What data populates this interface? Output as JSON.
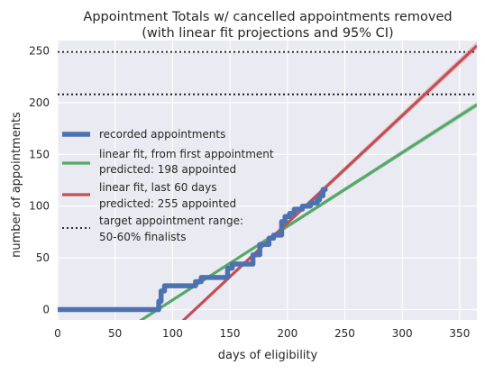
{
  "chart_data": {
    "type": "line",
    "title": [
      "Appointment Totals w/ cancelled appointments removed",
      "(with linear fit projections and 95% CI)"
    ],
    "xlabel": "days of eligibility",
    "ylabel": "number of appointments",
    "xlim": [
      0,
      365
    ],
    "ylim": [
      -10,
      260
    ],
    "xticks": [
      0,
      50,
      100,
      150,
      200,
      250,
      300,
      350
    ],
    "yticks": [
      0,
      50,
      100,
      150,
      200,
      250
    ],
    "grid": true,
    "legend_position": "left",
    "colors": {
      "background": "#eaeaf2",
      "grid": "#ffffff",
      "recorded": "#4c72b0",
      "fit_first": "#55a868",
      "fit_last60": "#c44e52",
      "target": "#111111"
    },
    "series": [
      {
        "name": "recorded appointments",
        "style": "step",
        "x": [
          0,
          88,
          88,
          90,
          90,
          93,
          93,
          120,
          120,
          125,
          125,
          148,
          148,
          152,
          152,
          170,
          170,
          176,
          176,
          184,
          184,
          188,
          188,
          195,
          195,
          198,
          198,
          202,
          202,
          206,
          206,
          213,
          213,
          220,
          220,
          226,
          226,
          228,
          228,
          231,
          231,
          233
        ],
        "y": [
          0,
          0,
          8,
          8,
          18,
          18,
          23,
          23,
          27,
          27,
          31,
          31,
          40,
          40,
          44,
          44,
          53,
          53,
          63,
          63,
          69,
          69,
          72,
          72,
          85,
          85,
          90,
          90,
          93,
          93,
          97,
          97,
          100,
          100,
          103,
          103,
          106,
          106,
          110,
          110,
          116,
          116
        ]
      },
      {
        "name": "linear fit, from first appointment",
        "detail": "predicted: 198 appointed",
        "style": "line",
        "x": [
          66,
          365
        ],
        "y": [
          -15,
          198
        ],
        "ci_halfwidth": 3
      },
      {
        "name": "linear fit, last 60 days",
        "detail": "predicted: 255 appointed",
        "style": "line",
        "x": [
          105,
          365
        ],
        "y": [
          -15,
          255
        ],
        "ci_halfwidth": 4
      }
    ],
    "hlines": [
      {
        "name": "target appointment range:",
        "detail": "50-60% finalists",
        "values": [
          208,
          249
        ],
        "style": "dotted"
      }
    ],
    "legend": [
      {
        "label": "recorded appointments",
        "color": "#4c72b0",
        "style": "thick"
      },
      {
        "label": "linear fit, from first appointment",
        "label2": "predicted: 198 appointed",
        "color": "#55a868",
        "style": "solid"
      },
      {
        "label": "linear fit, last 60 days",
        "label2": "predicted: 255 appointed",
        "color": "#c44e52",
        "style": "solid"
      },
      {
        "label": "target appointment range:",
        "label2": "50-60% finalists",
        "color": "#111111",
        "style": "dotted"
      }
    ]
  }
}
